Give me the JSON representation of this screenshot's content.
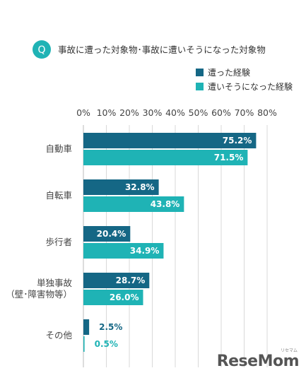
{
  "question": {
    "badge": "Q",
    "text": "事故に遭った対象物･事故に遭いそうになった対象物"
  },
  "colors": {
    "series1": "#156785",
    "series2": "#1fb3b5",
    "badge": "#1fb3b5",
    "grid": "#d9d9d9"
  },
  "chart_data": {
    "type": "bar",
    "orientation": "horizontal",
    "categories": [
      [
        "自動車"
      ],
      [
        "自転車"
      ],
      [
        "歩行者"
      ],
      [
        "単独事故",
        "（壁･障害物等）"
      ],
      [
        "その他"
      ]
    ],
    "series": [
      {
        "name": "遭った経験",
        "values": [
          75.2,
          32.8,
          20.4,
          28.7,
          2.5
        ],
        "labels": [
          "75.2%",
          "32.8%",
          "20.4%",
          "28.7%",
          "2.5%"
        ]
      },
      {
        "name": "遭いそうになった経験",
        "values": [
          71.5,
          43.8,
          34.9,
          26.0,
          0.5
        ],
        "labels": [
          "71.5%",
          "43.8%",
          "34.9%",
          "26.0%",
          "0.5%"
        ]
      }
    ],
    "xlim": [
      0,
      80
    ],
    "ticks": [
      "0%",
      "10%",
      "20%",
      "30%",
      "40%",
      "50%",
      "60%",
      "70%",
      "80%"
    ],
    "grid": true,
    "legend_position": "top-right"
  },
  "watermark": {
    "brand": "ReseMom",
    "sub": "リセマム"
  }
}
